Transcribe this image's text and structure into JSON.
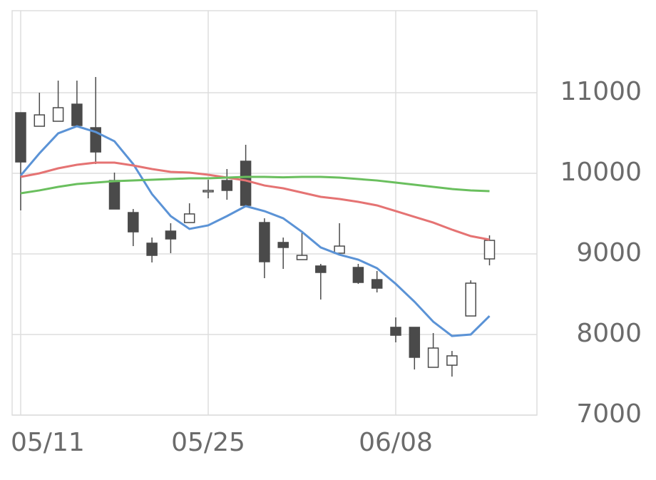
{
  "chart_data": {
    "type": "candlestick",
    "categories": [
      "05/11",
      null,
      null,
      null,
      null,
      null,
      null,
      null,
      null,
      null,
      "05/25",
      null,
      null,
      null,
      null,
      null,
      null,
      null,
      null,
      null,
      "06/08",
      null,
      null,
      null,
      null,
      null
    ],
    "open": [
      10752,
      10584,
      10646,
      10858,
      10566,
      9911,
      9513,
      9133,
      9283,
      9389,
      9770,
      9911,
      10150,
      9389,
      9142,
      8929,
      8850,
      9009,
      8832,
      8681,
      8089,
      8089,
      7593,
      7619,
      8230,
      8938
    ],
    "high": [
      10752,
      11000,
      11150,
      11150,
      11195,
      10009,
      9557,
      9203,
      9381,
      9628,
      9920,
      10053,
      10354,
      9442,
      9203,
      9274,
      8876,
      9381,
      8876,
      8788,
      8212,
      8089,
      8018,
      7796,
      8672,
      9230
    ],
    "low": [
      9540,
      10584,
      10646,
      10593,
      10115,
      9557,
      9097,
      8894,
      9009,
      9389,
      9690,
      9672,
      9602,
      8699,
      8814,
      8929,
      8434,
      9009,
      8628,
      8522,
      7903,
      7566,
      7593,
      7478,
      8230,
      8858
    ],
    "close": [
      10141,
      10725,
      10814,
      10593,
      10265,
      9557,
      9274,
      8982,
      9186,
      9496,
      9788,
      9788,
      9602,
      8903,
      9080,
      8982,
      8770,
      9097,
      8646,
      8575,
      7991,
      7717,
      7832,
      7735,
      8637,
      9168
    ],
    "up_color": "#ffffff",
    "down_color": "#4a4a4a",
    "edge_color": "#4a4a4a",
    "lines": [
      {
        "color": "#5b93d6",
        "values": [
          9973,
          10248,
          10496,
          10584,
          10513,
          10398,
          10115,
          9743,
          9469,
          9310,
          9354,
          9469,
          9593,
          9531,
          9442,
          9274,
          9080,
          8991,
          8929,
          8823,
          8628,
          8407,
          8159,
          7982,
          8000,
          8230
        ]
      },
      {
        "color": "#e57373",
        "values": [
          9956,
          10000,
          10062,
          10106,
          10133,
          10133,
          10097,
          10053,
          10018,
          10009,
          9982,
          9947,
          9911,
          9849,
          9814,
          9761,
          9708,
          9681,
          9646,
          9602,
          9531,
          9460,
          9389,
          9301,
          9221,
          9177
        ]
      },
      {
        "color": "#6abf5e",
        "values": [
          9752,
          9788,
          9832,
          9867,
          9885,
          9903,
          9911,
          9920,
          9929,
          9938,
          9938,
          9947,
          9956,
          9956,
          9950,
          9956,
          9956,
          9947,
          9929,
          9911,
          9885,
          9858,
          9832,
          9805,
          9788,
          9779
        ]
      }
    ],
    "ylim": [
      7000,
      12000
    ],
    "yticks": [
      7000,
      8000,
      9000,
      10000,
      11000
    ],
    "grid": true
  }
}
